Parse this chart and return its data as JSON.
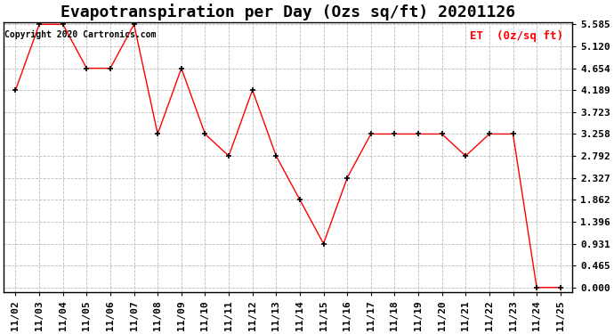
{
  "title": "Evapotranspiration per Day (Ozs sq/ft) 20201126",
  "x_labels": [
    "11/02",
    "11/03",
    "11/04",
    "11/05",
    "11/06",
    "11/07",
    "11/08",
    "11/09",
    "11/10",
    "11/11",
    "11/12",
    "11/13",
    "11/14",
    "11/15",
    "11/16",
    "11/17",
    "11/18",
    "11/19",
    "11/20",
    "11/21",
    "11/22",
    "11/23",
    "11/24",
    "11/25"
  ],
  "y_values": [
    4.189,
    5.585,
    5.585,
    4.654,
    4.654,
    5.585,
    3.258,
    4.654,
    3.258,
    2.792,
    4.189,
    2.792,
    1.862,
    0.931,
    2.327,
    3.258,
    3.258,
    3.258,
    3.258,
    2.792,
    3.258,
    3.258,
    0.0,
    0.0
  ],
  "y_ticks": [
    0.0,
    0.465,
    0.931,
    1.396,
    1.862,
    2.327,
    2.792,
    3.258,
    3.723,
    4.189,
    4.654,
    5.12,
    5.585
  ],
  "y_min": 0.0,
  "y_max": 5.585,
  "line_color": "red",
  "line_style": "-",
  "marker": "+",
  "marker_color": "black",
  "grid_color": "#bbbbbb",
  "background_color": "#ffffff",
  "legend_label": "ET  (0z/sq ft)",
  "legend_color": "red",
  "copyright_text": "Copyright 2020 Cartronics.com",
  "copyright_color": "black",
  "title_fontsize": 13,
  "tick_fontsize": 8,
  "label_fontsize": 9
}
